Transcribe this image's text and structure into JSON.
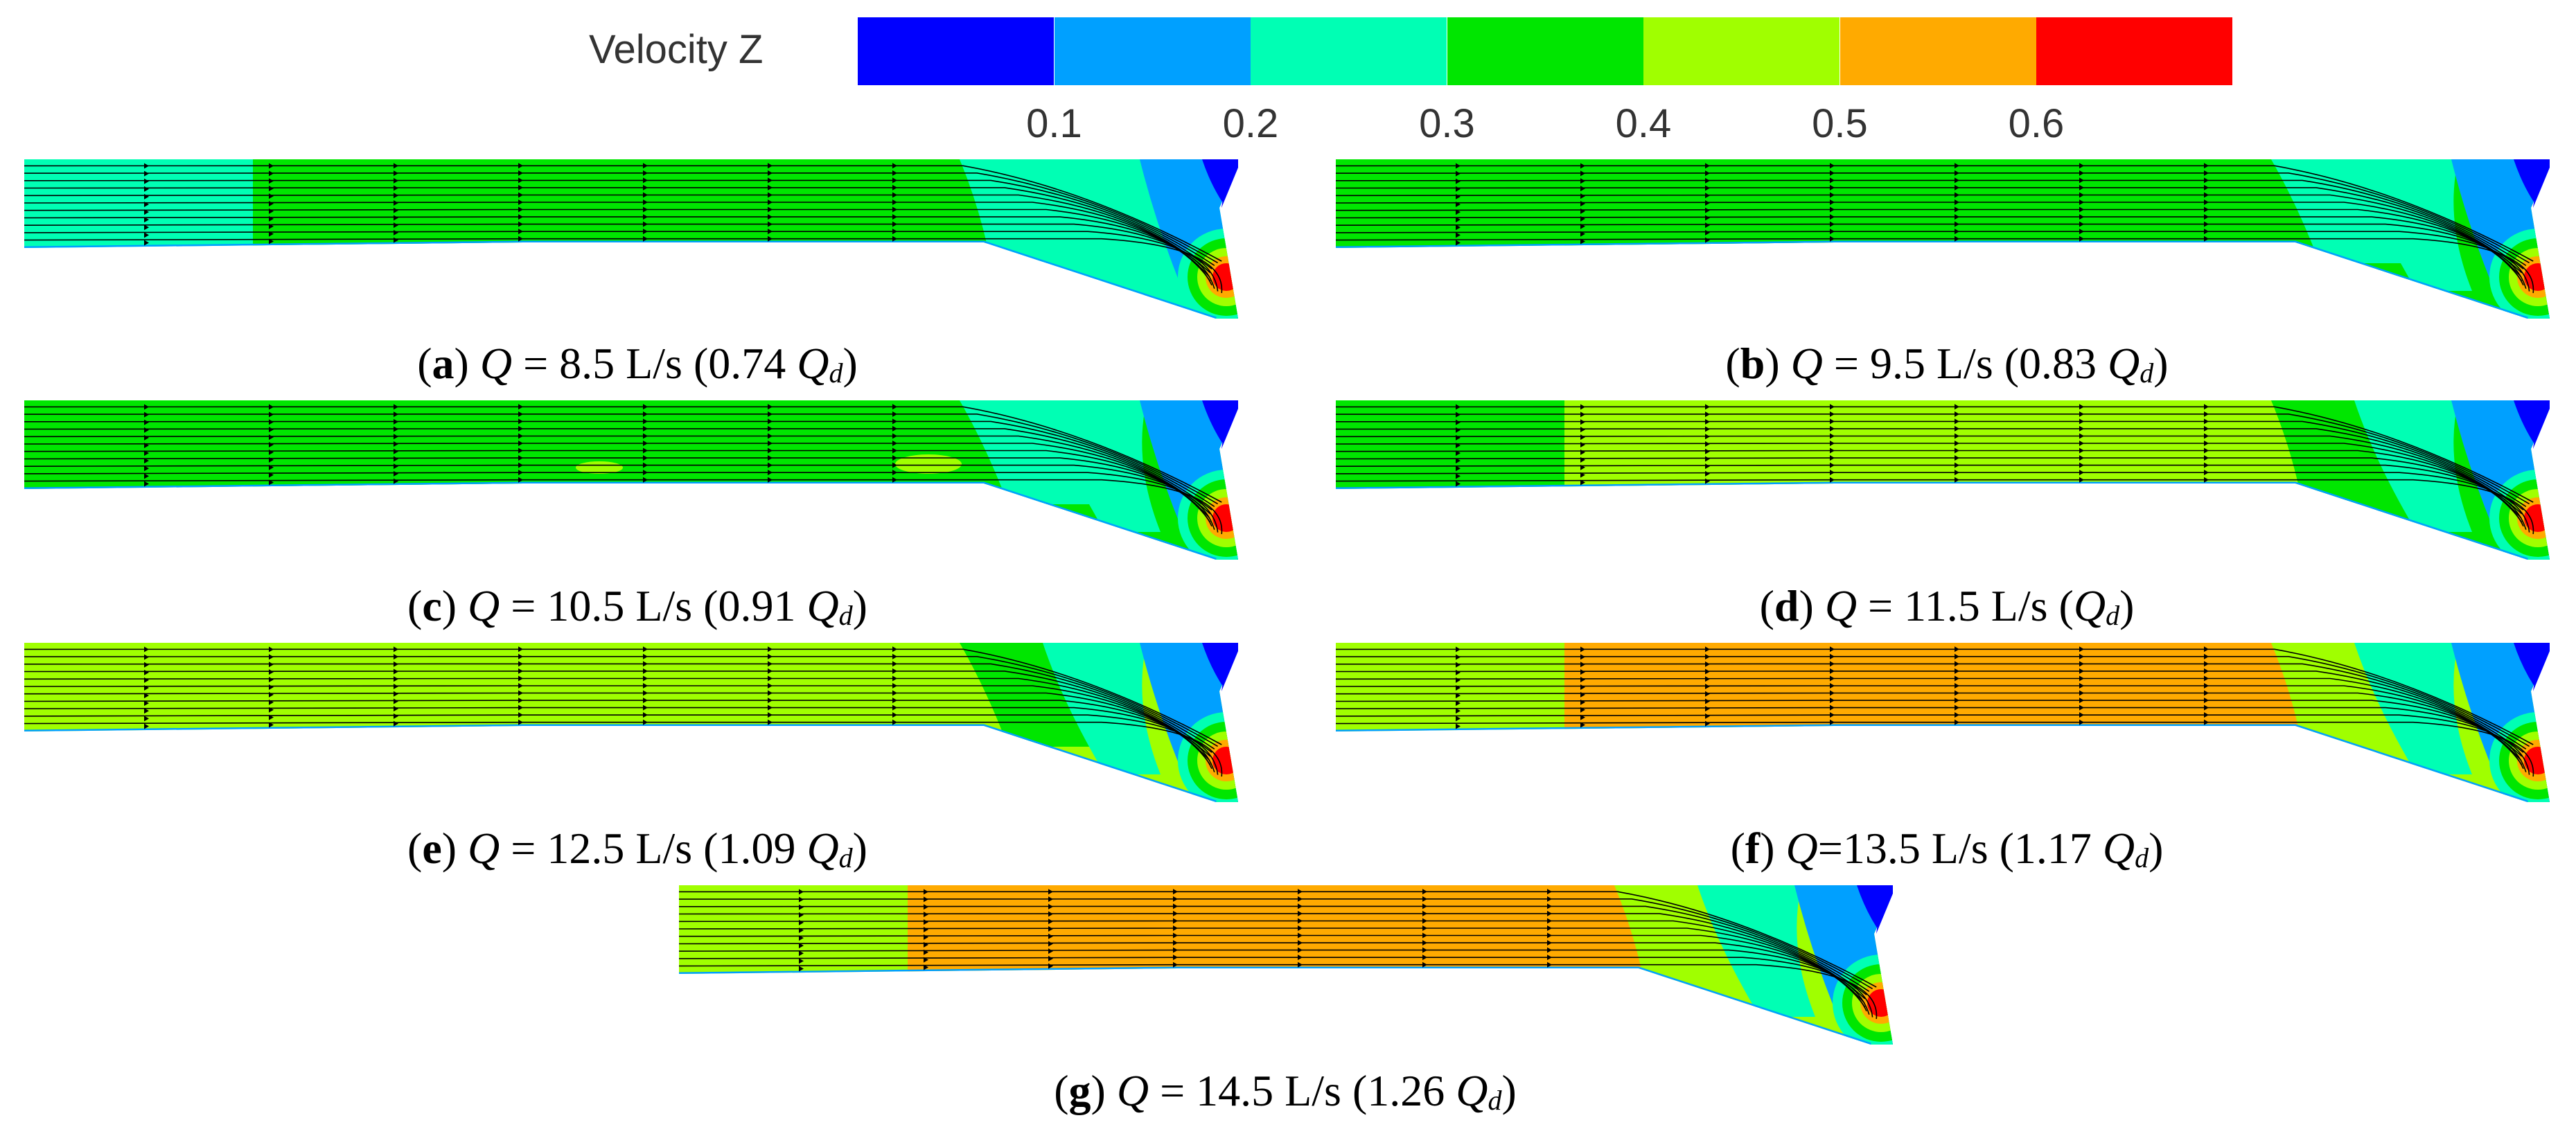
{
  "legend": {
    "title": "Velocity Z",
    "ticks": [
      "0.1",
      "0.2",
      "0.3",
      "0.4",
      "0.5",
      "0.6"
    ],
    "colors": [
      "#0000ff",
      "#00a0ff",
      "#00ffb4",
      "#00e600",
      "#a0ff00",
      "#ffaa00",
      "#ff0000"
    ]
  },
  "colors": {
    "blue": "#0000ff",
    "light_blue": "#00a0ff",
    "aqua": "#00ffb4",
    "green": "#00e600",
    "lime": "#a0ff00",
    "orange": "#ffaa00",
    "red": "#ff0000",
    "streamline": "#000000"
  },
  "panels": [
    {
      "letter": "a",
      "q_symbol": "Q",
      "equals": " = ",
      "flow": "8.5 L/s",
      "ratio_open": " (0.74 ",
      "qd_symbol": "Q",
      "qd_sub": "d",
      "ratio_close": ")",
      "field": {
        "left": "aqua",
        "mid": "green",
        "band": "aqua",
        "inlet": "light_blue"
      }
    },
    {
      "letter": "b",
      "q_symbol": "Q",
      "equals": " = ",
      "flow": "9.5 L/s",
      "ratio_open": " (0.83 ",
      "qd_symbol": "Q",
      "qd_sub": "d",
      "ratio_close": ")",
      "field": {
        "left": "green",
        "mid": "green",
        "band": "aqua",
        "inlet": "light_blue"
      }
    },
    {
      "letter": "c",
      "q_symbol": "Q",
      "equals": " = ",
      "flow": "10.5 L/s",
      "ratio_open": " (0.91 ",
      "qd_symbol": "Q",
      "qd_sub": "d",
      "ratio_close": ")",
      "field": {
        "left": "green",
        "mid": "green",
        "band": "aqua",
        "inlet": "light_blue",
        "spots": "lime"
      }
    },
    {
      "letter": "d",
      "q_symbol": "Q",
      "equals": " = ",
      "flow": "11.5 L/s",
      "ratio_open": " (",
      "qd_symbol": "Q",
      "qd_sub": "d",
      "ratio_close": ")",
      "field": {
        "left": "green",
        "mid": "lime",
        "band": "green",
        "inlet": "light_blue"
      }
    },
    {
      "letter": "e",
      "q_symbol": "Q",
      "equals": " = ",
      "flow": "12.5 L/s",
      "ratio_open": " (1.09 ",
      "qd_symbol": "Q",
      "qd_sub": "d",
      "ratio_close": ")",
      "field": {
        "left": "lime",
        "mid": "lime",
        "band": "green",
        "inlet": "light_blue"
      }
    },
    {
      "letter": "f",
      "q_symbol": "Q",
      "equals": "=",
      "flow": "13.5 L/s",
      "ratio_open": " (1.17 ",
      "qd_symbol": "Q",
      "qd_sub": "d",
      "ratio_close": ")",
      "field": {
        "left": "lime",
        "mid": "orange",
        "band": "lime",
        "inlet": "light_blue"
      }
    },
    {
      "letter": "g",
      "q_symbol": "Q",
      "equals": " = ",
      "flow": "14.5 L/s",
      "ratio_open": " (1.26 ",
      "qd_symbol": "Q",
      "qd_sub": "d",
      "ratio_close": ")",
      "field": {
        "left": "lime",
        "mid": "orange",
        "band": "lime",
        "inlet": "light_blue"
      }
    }
  ]
}
